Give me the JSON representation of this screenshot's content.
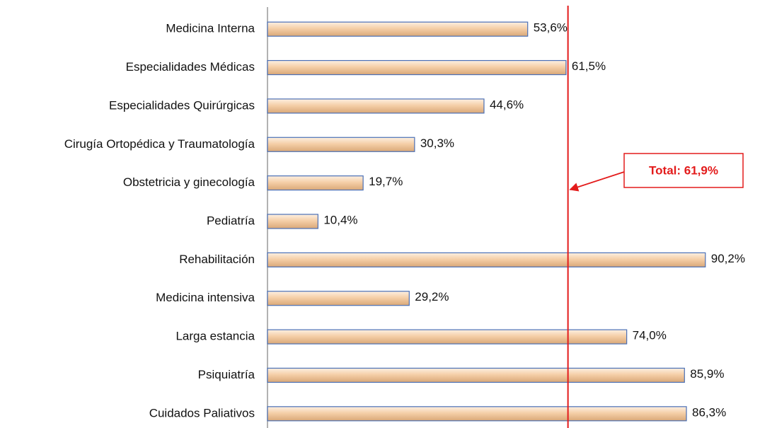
{
  "chart_data": {
    "type": "bar",
    "orientation": "horizontal",
    "categories": [
      "Medicina Interna",
      "Especialidades Médicas",
      "Especialidades Quirúrgicas",
      "Cirugía Ortopédica y Traumatología",
      "Obstetricia y ginecología",
      "Pediatría",
      "Rehabilitación",
      "Medicina intensiva",
      "Larga estancia",
      "Psiquiatría",
      "Cuidados Paliativos"
    ],
    "values": [
      53.6,
      61.5,
      44.6,
      30.3,
      19.7,
      10.4,
      90.2,
      29.2,
      74.0,
      85.9,
      86.3
    ],
    "value_labels": [
      "53,6%",
      "61,5%",
      "44,6%",
      "30,3%",
      "19,7%",
      "10,4%",
      "90,2%",
      "29,2%",
      "74,0%",
      "85,9%",
      "86,3%"
    ],
    "color": "#f5cfa8",
    "xlim": [
      0,
      100
    ],
    "reference_line": {
      "value": 61.9,
      "label": "Total: 61,9%",
      "color": "#e31b1b"
    }
  }
}
